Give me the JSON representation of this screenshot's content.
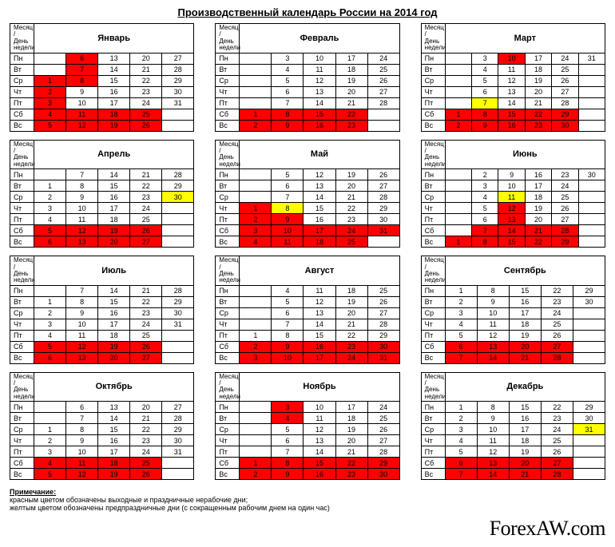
{
  "title": "Производственный календарь России на 2014 год",
  "header_label": "Месяц / День недели",
  "weekdays": [
    "Пн",
    "Вт",
    "Ср",
    "Чт",
    "Пт",
    "Сб",
    "Вс"
  ],
  "colors": {
    "holiday": "#ff0000",
    "preholiday": "#ffff00",
    "border": "#000000"
  },
  "notes_title": "Примечание:",
  "notes": [
    "красным цветом обозначены выходные и праздничные нерабочие дни;",
    "желтым цветом обозначены предпраздничные дни (с сокращенным рабочим днем на один час)"
  ],
  "brand": "ForexAW.com",
  "months": [
    {
      "name": "Январь",
      "cols": 5,
      "cells": [
        [
          "",
          "6r",
          "13",
          "20",
          "27"
        ],
        [
          "",
          "7r",
          "14",
          "21",
          "28"
        ],
        [
          "1r",
          "8r",
          "15",
          "22",
          "29"
        ],
        [
          "2r",
          "9",
          "16",
          "23",
          "30"
        ],
        [
          "3r",
          "10",
          "17",
          "24",
          "31"
        ],
        [
          "4r",
          "11r",
          "18r",
          "25r",
          ""
        ],
        [
          "5r",
          "12r",
          "19r",
          "26r",
          ""
        ]
      ]
    },
    {
      "name": "Февраль",
      "cols": 5,
      "cells": [
        [
          "",
          "3",
          "10",
          "17",
          "24"
        ],
        [
          "",
          "4",
          "11",
          "18",
          "25"
        ],
        [
          "",
          "5",
          "12",
          "19",
          "26"
        ],
        [
          "",
          "6",
          "13",
          "20",
          "27"
        ],
        [
          "",
          "7",
          "14",
          "21",
          "28"
        ],
        [
          "1r",
          "8r",
          "15r",
          "22r",
          ""
        ],
        [
          "2r",
          "9r",
          "16r",
          "23r",
          ""
        ]
      ]
    },
    {
      "name": "Март",
      "cols": 6,
      "cells": [
        [
          "",
          "3",
          "10r",
          "17",
          "24",
          "31"
        ],
        [
          "",
          "4",
          "11",
          "18",
          "25",
          ""
        ],
        [
          "",
          "5",
          "12",
          "19",
          "26",
          ""
        ],
        [
          "",
          "6",
          "13",
          "20",
          "27",
          ""
        ],
        [
          "",
          "7y",
          "14",
          "21",
          "28",
          ""
        ],
        [
          "1r",
          "8r",
          "15r",
          "22r",
          "29r",
          ""
        ],
        [
          "2r",
          "9r",
          "16r",
          "23r",
          "30r",
          ""
        ]
      ]
    },
    {
      "name": "Апрель",
      "cols": 5,
      "cells": [
        [
          "",
          "7",
          "14",
          "21",
          "28"
        ],
        [
          "1",
          "8",
          "15",
          "22",
          "29"
        ],
        [
          "2",
          "9",
          "16",
          "23",
          "30y"
        ],
        [
          "3",
          "10",
          "17",
          "24",
          ""
        ],
        [
          "4",
          "11",
          "18",
          "25",
          ""
        ],
        [
          "5r",
          "12r",
          "19r",
          "26r",
          ""
        ],
        [
          "6r",
          "13r",
          "20r",
          "27r",
          ""
        ]
      ]
    },
    {
      "name": "Май",
      "cols": 5,
      "cells": [
        [
          "",
          "5",
          "12",
          "19",
          "26"
        ],
        [
          "",
          "6",
          "13",
          "20",
          "27"
        ],
        [
          "",
          "7",
          "14",
          "21",
          "28"
        ],
        [
          "1r",
          "8y",
          "15",
          "22",
          "29"
        ],
        [
          "2r",
          "9r",
          "16",
          "23",
          "30"
        ],
        [
          "3r",
          "10r",
          "17r",
          "24r",
          "31r"
        ],
        [
          "4r",
          "11r",
          "18r",
          "25r",
          ""
        ]
      ]
    },
    {
      "name": "Июнь",
      "cols": 6,
      "cells": [
        [
          "",
          "2",
          "9",
          "16",
          "23",
          "30"
        ],
        [
          "",
          "3",
          "10",
          "17",
          "24",
          ""
        ],
        [
          "",
          "4",
          "11y",
          "18",
          "25",
          ""
        ],
        [
          "",
          "5",
          "12r",
          "19",
          "26",
          ""
        ],
        [
          "",
          "6",
          "13r",
          "20",
          "27",
          ""
        ],
        [
          "",
          "7r",
          "14r",
          "21r",
          "28r",
          ""
        ],
        [
          "1r",
          "8r",
          "15r",
          "22r",
          "29r",
          ""
        ]
      ]
    },
    {
      "name": "Июль",
      "cols": 5,
      "cells": [
        [
          "",
          "7",
          "14",
          "21",
          "28"
        ],
        [
          "1",
          "8",
          "15",
          "22",
          "29"
        ],
        [
          "2",
          "9",
          "16",
          "23",
          "30"
        ],
        [
          "3",
          "10",
          "17",
          "24",
          "31"
        ],
        [
          "4",
          "11",
          "18",
          "25",
          ""
        ],
        [
          "5r",
          "12r",
          "19r",
          "26r",
          ""
        ],
        [
          "6r",
          "13r",
          "20r",
          "27r",
          ""
        ]
      ]
    },
    {
      "name": "Август",
      "cols": 5,
      "cells": [
        [
          "",
          "4",
          "11",
          "18",
          "25"
        ],
        [
          "",
          "5",
          "12",
          "19",
          "26"
        ],
        [
          "",
          "6",
          "13",
          "20",
          "27"
        ],
        [
          "",
          "7",
          "14",
          "21",
          "28"
        ],
        [
          "1",
          "8",
          "15",
          "22",
          "29"
        ],
        [
          "2r",
          "9r",
          "16r",
          "23r",
          "30r"
        ],
        [
          "3r",
          "10r",
          "17r",
          "24r",
          "31r"
        ]
      ]
    },
    {
      "name": "Сентябрь",
      "cols": 5,
      "cells": [
        [
          "1",
          "8",
          "15",
          "22",
          "29"
        ],
        [
          "2",
          "9",
          "16",
          "23",
          "30"
        ],
        [
          "3",
          "10",
          "17",
          "24",
          ""
        ],
        [
          "4",
          "11",
          "18",
          "25",
          ""
        ],
        [
          "5",
          "12",
          "19",
          "26",
          ""
        ],
        [
          "6r",
          "13r",
          "20r",
          "27r",
          ""
        ],
        [
          "7r",
          "14r",
          "21r",
          "28r",
          ""
        ]
      ]
    },
    {
      "name": "Октябрь",
      "cols": 5,
      "cells": [
        [
          "",
          "6",
          "13",
          "20",
          "27"
        ],
        [
          "",
          "7",
          "14",
          "21",
          "28"
        ],
        [
          "1",
          "8",
          "15",
          "22",
          "29"
        ],
        [
          "2",
          "9",
          "16",
          "23",
          "30"
        ],
        [
          "3",
          "10",
          "17",
          "24",
          "31"
        ],
        [
          "4r",
          "11r",
          "18r",
          "25r",
          ""
        ],
        [
          "5r",
          "12r",
          "19r",
          "26r",
          ""
        ]
      ]
    },
    {
      "name": "Ноябрь",
      "cols": 5,
      "cells": [
        [
          "",
          "3r",
          "10",
          "17",
          "24"
        ],
        [
          "",
          "4r",
          "11",
          "18",
          "25"
        ],
        [
          "",
          "5",
          "12",
          "19",
          "26"
        ],
        [
          "",
          "6",
          "13",
          "20",
          "27"
        ],
        [
          "",
          "7",
          "14",
          "21",
          "28"
        ],
        [
          "1r",
          "8r",
          "15r",
          "22r",
          "29r"
        ],
        [
          "2r",
          "9r",
          "16r",
          "23r",
          "30r"
        ]
      ]
    },
    {
      "name": "Декабрь",
      "cols": 5,
      "cells": [
        [
          "1",
          "8",
          "15",
          "22",
          "29"
        ],
        [
          "2",
          "9",
          "16",
          "23",
          "30"
        ],
        [
          "3",
          "10",
          "17",
          "24",
          "31y"
        ],
        [
          "4",
          "11",
          "18",
          "25",
          ""
        ],
        [
          "5",
          "12",
          "19",
          "26",
          ""
        ],
        [
          "6r",
          "13r",
          "20r",
          "27r",
          ""
        ],
        [
          "7r",
          "14r",
          "21r",
          "28r",
          ""
        ]
      ]
    }
  ]
}
